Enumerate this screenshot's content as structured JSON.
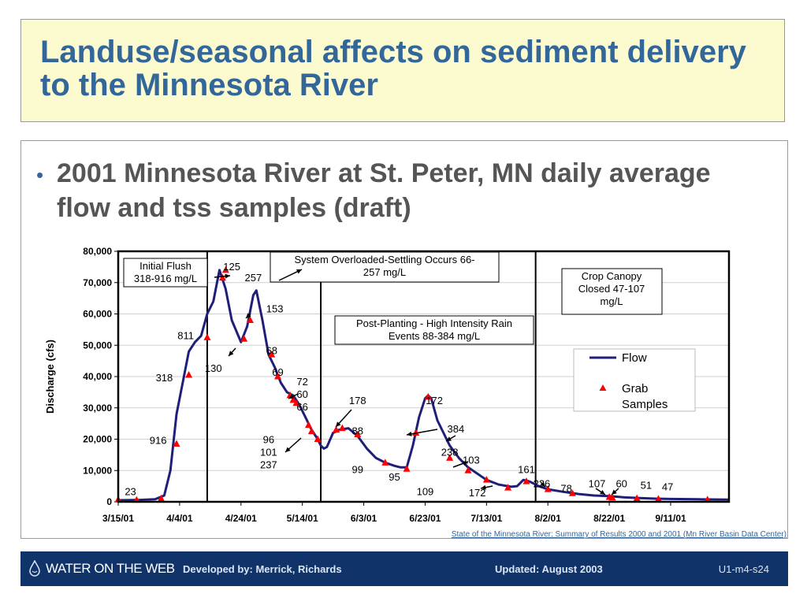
{
  "slide": {
    "title": "Landuse/seasonal affects on sediment delivery to the Minnesota River",
    "bullet": "2001 Minnesota River at St. Peter, MN daily average flow and tss samples (draft)",
    "credit": "State of the Minnesota River: Summary of Results 2000 and 2001 (Mn River Basin Data Center)"
  },
  "footer": {
    "logo": "WATER ON THE WEB",
    "developed": "Developed by: Merrick, Richards",
    "updated": "Updated: August 2003",
    "code": "U1-m4-s24"
  },
  "colors": {
    "title": "#336699",
    "flow": "#1f1f7a",
    "marker": "#ff0000",
    "footer": "#10336a"
  },
  "chart_data": {
    "type": "line",
    "ylabel": "Discharge (cfs)",
    "ylim": [
      0,
      80000
    ],
    "yticks": [
      0,
      10000,
      20000,
      30000,
      40000,
      50000,
      60000,
      70000,
      80000
    ],
    "ytick_labels": [
      "0",
      "10,000",
      "20,000",
      "30,000",
      "40,000",
      "50,000",
      "60,000",
      "70,000",
      "80,000"
    ],
    "x_start": "2001-03-15",
    "x_end": "2001-09-30",
    "xticks": [
      "2001-03-15",
      "2001-04-04",
      "2001-04-24",
      "2001-05-14",
      "2001-06-03",
      "2001-06-23",
      "2001-07-13",
      "2001-08-02",
      "2001-08-22",
      "2001-09-11"
    ],
    "xtick_labels": [
      "3/15/01",
      "4/4/01",
      "4/24/01",
      "5/14/01",
      "6/3/01",
      "6/23/01",
      "7/13/01",
      "8/2/01",
      "8/22/01",
      "9/11/01"
    ],
    "legend": {
      "position": "right",
      "entries": [
        "Flow",
        "Grab Samples"
      ]
    },
    "series": [
      {
        "name": "Flow",
        "points": [
          [
            "2001-03-15",
            500
          ],
          [
            "2001-03-22",
            600
          ],
          [
            "2001-03-27",
            800
          ],
          [
            "2001-03-30",
            2000
          ],
          [
            "2001-04-01",
            10000
          ],
          [
            "2001-04-03",
            28000
          ],
          [
            "2001-04-05",
            38000
          ],
          [
            "2001-04-07",
            48000
          ],
          [
            "2001-04-09",
            51000
          ],
          [
            "2001-04-11",
            53000
          ],
          [
            "2001-04-13",
            60000
          ],
          [
            "2001-04-15",
            64000
          ],
          [
            "2001-04-17",
            74000
          ],
          [
            "2001-04-19",
            68000
          ],
          [
            "2001-04-21",
            58000
          ],
          [
            "2001-04-24",
            51000
          ],
          [
            "2001-04-26",
            56000
          ],
          [
            "2001-04-28",
            66000
          ],
          [
            "2001-04-29",
            67500
          ],
          [
            "2001-05-01",
            58000
          ],
          [
            "2001-05-03",
            47000
          ],
          [
            "2001-05-05",
            43000
          ],
          [
            "2001-05-07",
            38000
          ],
          [
            "2001-05-09",
            35000
          ],
          [
            "2001-05-11",
            34000
          ],
          [
            "2001-05-13",
            31000
          ],
          [
            "2001-05-15",
            27000
          ],
          [
            "2001-05-17",
            23000
          ],
          [
            "2001-05-19",
            20000
          ],
          [
            "2001-05-20",
            18000
          ],
          [
            "2001-05-21",
            17000
          ],
          [
            "2001-05-22",
            17500
          ],
          [
            "2001-05-24",
            22000
          ],
          [
            "2001-05-26",
            23000
          ],
          [
            "2001-05-29",
            23500
          ],
          [
            "2001-06-01",
            21000
          ],
          [
            "2001-06-04",
            17000
          ],
          [
            "2001-06-07",
            14000
          ],
          [
            "2001-06-10",
            12500
          ],
          [
            "2001-06-13",
            11500
          ],
          [
            "2001-06-15",
            11000
          ],
          [
            "2001-06-17",
            11000
          ],
          [
            "2001-06-19",
            18000
          ],
          [
            "2001-06-21",
            27000
          ],
          [
            "2001-06-23",
            33000
          ],
          [
            "2001-06-24",
            34000
          ],
          [
            "2001-06-25",
            33000
          ],
          [
            "2001-06-27",
            26000
          ],
          [
            "2001-07-01",
            18000
          ],
          [
            "2001-07-04",
            14000
          ],
          [
            "2001-07-07",
            11000
          ],
          [
            "2001-07-10",
            9000
          ],
          [
            "2001-07-13",
            7000
          ],
          [
            "2001-07-17",
            5500
          ],
          [
            "2001-07-21",
            4800
          ],
          [
            "2001-07-23",
            5000
          ],
          [
            "2001-07-25",
            7000
          ],
          [
            "2001-07-27",
            6500
          ],
          [
            "2001-07-30",
            5000
          ],
          [
            "2001-08-02",
            4000
          ],
          [
            "2001-08-07",
            3200
          ],
          [
            "2001-08-12",
            2500
          ],
          [
            "2001-08-17",
            2000
          ],
          [
            "2001-08-22",
            1800
          ],
          [
            "2001-08-27",
            1400
          ],
          [
            "2001-09-01",
            1200
          ],
          [
            "2001-09-06",
            1000
          ],
          [
            "2001-09-11",
            900
          ],
          [
            "2001-09-20",
            800
          ],
          [
            "2001-09-30",
            700
          ]
        ]
      },
      {
        "name": "Grab Samples",
        "points": [
          [
            "2001-03-15",
            700
          ],
          [
            "2001-03-21",
            600
          ],
          [
            "2001-03-29",
            1000
          ],
          [
            "2001-04-03",
            18500
          ],
          [
            "2001-04-07",
            40500
          ],
          [
            "2001-04-13",
            52500
          ],
          [
            "2001-04-18",
            71500
          ],
          [
            "2001-04-19",
            74000
          ],
          [
            "2001-04-25",
            52000
          ],
          [
            "2001-04-27",
            58000
          ],
          [
            "2001-05-04",
            47000
          ],
          [
            "2001-05-06",
            40000
          ],
          [
            "2001-05-10",
            34000
          ],
          [
            "2001-05-11",
            32500
          ],
          [
            "2001-05-12",
            31500
          ],
          [
            "2001-05-16",
            24500
          ],
          [
            "2001-05-17",
            22500
          ],
          [
            "2001-05-19",
            20000
          ],
          [
            "2001-05-25",
            23000
          ],
          [
            "2001-05-27",
            23500
          ],
          [
            "2001-06-01",
            21500
          ],
          [
            "2001-06-10",
            12500
          ],
          [
            "2001-06-17",
            10500
          ],
          [
            "2001-06-20",
            22000
          ],
          [
            "2001-06-24",
            33500
          ],
          [
            "2001-07-01",
            14000
          ],
          [
            "2001-07-07",
            10000
          ],
          [
            "2001-07-13",
            7000
          ],
          [
            "2001-07-20",
            4500
          ],
          [
            "2001-07-26",
            6500
          ],
          [
            "2001-08-02",
            4000
          ],
          [
            "2001-08-10",
            2700
          ],
          [
            "2001-08-22",
            1500
          ],
          [
            "2001-08-23",
            1300
          ],
          [
            "2001-08-31",
            1100
          ],
          [
            "2001-09-07",
            900
          ],
          [
            "2001-09-23",
            700
          ]
        ]
      }
    ],
    "dividers": [
      "2001-04-13",
      "2001-05-20",
      "2001-07-29"
    ],
    "annotations": {
      "boxes": [
        {
          "id": "initial-flush",
          "lines": [
            "Initial Flush",
            "318-916 mg/L"
          ]
        },
        {
          "id": "overloaded",
          "lines": [
            "System Overloaded-Settling Occurs 66-",
            "257  mg/L"
          ]
        },
        {
          "id": "post-planting",
          "lines": [
            "Post-Planting - High Intensity Rain",
            "Events 88-384 mg/L"
          ]
        },
        {
          "id": "crop-canopy",
          "lines": [
            "Crop Canopy",
            "Closed 47-107",
            "mg/L"
          ]
        }
      ],
      "values": [
        {
          "text": "23",
          "x": "2001-03-19",
          "y": 2200
        },
        {
          "text": "916",
          "x": "2001-03-28",
          "y": 18500
        },
        {
          "text": "318",
          "x": "2001-03-30",
          "y": 38500
        },
        {
          "text": "811",
          "x": "2001-04-06",
          "y": 52000
        },
        {
          "text": "125",
          "x": "2001-04-21",
          "y": 74000
        },
        {
          "text": "257",
          "x": "2001-04-28",
          "y": 70500
        },
        {
          "text": "130",
          "x": "2001-04-15",
          "y": 41500
        },
        {
          "text": "153",
          "x": "2001-05-05",
          "y": 60500
        },
        {
          "text": "68",
          "x": "2001-05-04",
          "y": 47200
        },
        {
          "text": "69",
          "x": "2001-05-06",
          "y": 40200
        },
        {
          "text": "72",
          "x": "2001-05-14",
          "y": 37200
        },
        {
          "text": "60",
          "x": "2001-05-14",
          "y": 33200
        },
        {
          "text": "66",
          "x": "2001-05-14",
          "y": 29200
        },
        {
          "text": "96",
          "x": "2001-05-03",
          "y": 18700
        },
        {
          "text": "101",
          "x": "2001-05-03",
          "y": 14700
        },
        {
          "text": "237",
          "x": "2001-05-03",
          "y": 10700
        },
        {
          "text": "178",
          "x": "2001-06-01",
          "y": 31200
        },
        {
          "text": "88",
          "x": "2001-06-01",
          "y": 21500
        },
        {
          "text": "99",
          "x": "2001-06-01",
          "y": 9200
        },
        {
          "text": "95",
          "x": "2001-06-13",
          "y": 6800
        },
        {
          "text": "172",
          "x": "2001-06-26",
          "y": 31200
        },
        {
          "text": "384",
          "x": "2001-07-03",
          "y": 22200
        },
        {
          "text": "238",
          "x": "2001-07-01",
          "y": 14700
        },
        {
          "text": "103",
          "x": "2001-07-08",
          "y": 12200
        },
        {
          "text": "109",
          "x": "2001-06-23",
          "y": 2200
        },
        {
          "text": "172",
          "x": "2001-07-10",
          "y": 1700
        },
        {
          "text": "161",
          "x": "2001-07-26",
          "y": 9200
        },
        {
          "text": "226",
          "x": "2001-07-31",
          "y": 4700
        },
        {
          "text": "78",
          "x": "2001-08-08",
          "y": 3200
        },
        {
          "text": "107",
          "x": "2001-08-18",
          "y": 4700
        },
        {
          "text": "60",
          "x": "2001-08-26",
          "y": 4700
        },
        {
          "text": "51",
          "x": "2001-09-03",
          "y": 4200
        },
        {
          "text": "47",
          "x": "2001-09-10",
          "y": 3700
        }
      ]
    }
  }
}
